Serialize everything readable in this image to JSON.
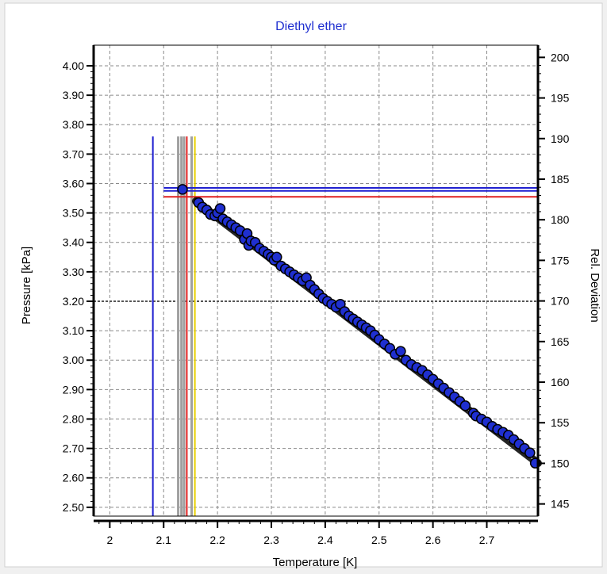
{
  "chart_data": {
    "type": "scatter",
    "title": "Diethyl ether",
    "xlabel": "Temperature [K]",
    "ylabel": "Pressure [kPa]",
    "y2label": "Rel. Deviation",
    "xlim": [
      1.97,
      2.795
    ],
    "ylim": [
      2.47,
      4.07
    ],
    "y2lim": [
      143.5,
      201.5
    ],
    "xticks": [
      "2",
      "2.1",
      "2.2",
      "2.3",
      "2.4",
      "2.5",
      "2.6",
      "2.7"
    ],
    "yticks": [
      "2.50",
      "2.60",
      "2.70",
      "2.80",
      "2.90",
      "3.00",
      "3.10",
      "3.20",
      "3.30",
      "3.40",
      "3.50",
      "3.60",
      "3.70",
      "3.80",
      "3.90",
      "4.00"
    ],
    "y2ticks": [
      "145",
      "150",
      "155",
      "160",
      "165",
      "170",
      "175",
      "180",
      "185",
      "190",
      "195",
      "200"
    ],
    "grid": true,
    "colors": {
      "points": "#1f2fd0",
      "point_edge": "#000000",
      "fit_line": "#000000",
      "title": "#1f2fd0",
      "vline_blue": "#2020d0",
      "vline_gray": "#a0a0a0",
      "vline_red": "#e02020",
      "vline_yellow": "#e8d000",
      "hline_blue": "#2020d0",
      "hline_red": "#e02020"
    },
    "fit_line": {
      "x": [
        2.16,
        2.795
      ],
      "y": [
        3.54,
        2.65
      ]
    },
    "vertical_markers": [
      {
        "x": 2.08,
        "y_top": 3.76,
        "color": "blue"
      },
      {
        "x": 2.127,
        "y_top": 3.76,
        "color": "gray"
      },
      {
        "x": 2.133,
        "y_top": 3.76,
        "color": "gray"
      },
      {
        "x": 2.138,
        "y_top": 3.76,
        "color": "gray"
      },
      {
        "x": 2.143,
        "y_top": 3.76,
        "color": "red"
      },
      {
        "x": 2.152,
        "y_top": 3.76,
        "color": "gray"
      },
      {
        "x": 2.158,
        "y_top": 3.76,
        "color": "yellow"
      }
    ],
    "horizontal_markers": [
      {
        "y": 3.585,
        "x_start": 2.1,
        "color": "blue"
      },
      {
        "y": 3.575,
        "x_start": 2.1,
        "color": "blue"
      },
      {
        "y": 3.555,
        "x_start": 2.1,
        "color": "red"
      }
    ],
    "series": [
      {
        "x": [
          2.135,
          2.165,
          2.172,
          2.18,
          2.187,
          2.195,
          2.2,
          2.205,
          2.21,
          2.218,
          2.226,
          2.234,
          2.242,
          2.25,
          2.255,
          2.258,
          2.262,
          2.27,
          2.278,
          2.286,
          2.294,
          2.3,
          2.305,
          2.31,
          2.318,
          2.326,
          2.334,
          2.342,
          2.35,
          2.358,
          2.365,
          2.372,
          2.38,
          2.388,
          2.396,
          2.404,
          2.412,
          2.42,
          2.428,
          2.436,
          2.444,
          2.452,
          2.46,
          2.468,
          2.476,
          2.484,
          2.492,
          2.5,
          2.51,
          2.52,
          2.53,
          2.54,
          2.55,
          2.56,
          2.57,
          2.58,
          2.59,
          2.6,
          2.61,
          2.62,
          2.63,
          2.64,
          2.65,
          2.66,
          2.675,
          2.68,
          2.69,
          2.7,
          2.71,
          2.72,
          2.73,
          2.74,
          2.75,
          2.76,
          2.77,
          2.78,
          2.79
        ],
        "y": [
          3.58,
          3.535,
          3.52,
          3.51,
          3.495,
          3.49,
          3.5,
          3.515,
          3.48,
          3.47,
          3.46,
          3.45,
          3.44,
          3.41,
          3.43,
          3.39,
          3.405,
          3.4,
          3.38,
          3.37,
          3.36,
          3.35,
          3.34,
          3.35,
          3.32,
          3.31,
          3.3,
          3.29,
          3.28,
          3.27,
          3.28,
          3.255,
          3.24,
          3.225,
          3.21,
          3.2,
          3.19,
          3.18,
          3.19,
          3.165,
          3.15,
          3.14,
          3.13,
          3.12,
          3.11,
          3.1,
          3.085,
          3.07,
          3.055,
          3.04,
          3.02,
          3.03,
          3.0,
          2.985,
          2.975,
          2.965,
          2.95,
          2.935,
          2.92,
          2.905,
          2.89,
          2.875,
          2.86,
          2.845,
          2.82,
          2.81,
          2.8,
          2.79,
          2.775,
          2.765,
          2.755,
          2.745,
          2.73,
          2.715,
          2.7,
          2.685,
          2.65
        ]
      }
    ]
  }
}
